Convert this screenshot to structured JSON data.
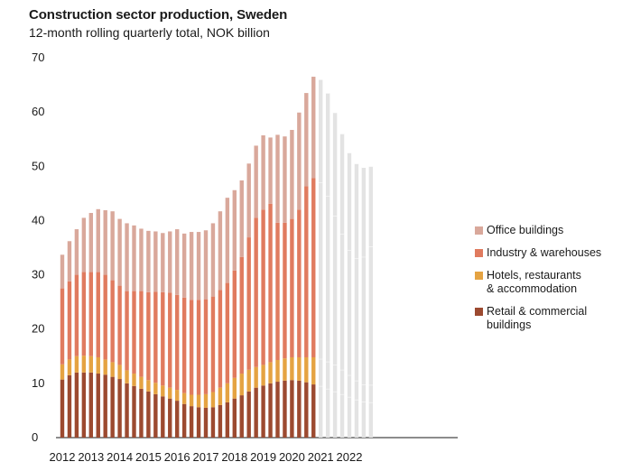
{
  "chart_data": {
    "type": "bar",
    "stacked": true,
    "title": "Construction sector production, Sweden",
    "subtitle": "12-month rolling quarterly total, NOK billion",
    "ylim": [
      0,
      70
    ],
    "yticks": [
      0,
      10,
      20,
      30,
      40,
      50,
      60,
      70
    ],
    "xticks": [
      "2012",
      "2013",
      "2014",
      "2015",
      "2016",
      "2017",
      "2018",
      "2019",
      "2020",
      "2021",
      "2022"
    ],
    "grid": false,
    "legend_position": "right",
    "colors": {
      "office": "#d9a89b",
      "industry": "#e07b5f",
      "hotels": "#e5a342",
      "retail": "#9c4a30",
      "forecast": "#e3e3e3"
    },
    "categories": [
      "2012Q1",
      "2012Q2",
      "2012Q3",
      "2012Q4",
      "2013Q1",
      "2013Q2",
      "2013Q3",
      "2013Q4",
      "2014Q1",
      "2014Q2",
      "2014Q3",
      "2014Q4",
      "2015Q1",
      "2015Q2",
      "2015Q3",
      "2015Q4",
      "2016Q1",
      "2016Q2",
      "2016Q3",
      "2016Q4",
      "2017Q1",
      "2017Q2",
      "2017Q3",
      "2017Q4",
      "2018Q1",
      "2018Q2",
      "2018Q3",
      "2018Q4",
      "2019Q1",
      "2019Q2",
      "2019Q3",
      "2019Q4",
      "2020Q1",
      "2020Q2",
      "2020Q3",
      "2020Q4",
      "2021Q1",
      "2021Q2",
      "2021Q3",
      "2021Q4",
      "2022Q1",
      "2022Q2",
      "2022Q3",
      "2022Q4"
    ],
    "actual_count": 36,
    "series": [
      {
        "name": "Retail & commercial buildings",
        "key": "retail",
        "values": [
          10.7,
          11.5,
          12,
          12,
          12,
          11.8,
          11.6,
          11.2,
          10.8,
          10,
          9.5,
          9,
          8.5,
          8.0,
          7.6,
          7.2,
          6.8,
          6.2,
          5.8,
          5.6,
          5.5,
          5.6,
          6.0,
          6.5,
          7.2,
          7.8,
          8.5,
          9.2,
          9.6,
          10.0,
          10.3,
          10.5,
          10.6,
          10.5,
          10.2,
          9.8,
          9.5,
          9.0,
          8.5,
          8.0,
          7.5,
          7.0,
          6.6,
          6.5
        ]
      },
      {
        "name": "Hotels, restaurants & accommodation",
        "key": "hotels",
        "values": [
          2.8,
          2.9,
          3.0,
          3.1,
          3.0,
          3.0,
          2.8,
          2.7,
          2.6,
          2.4,
          2.3,
          2.2,
          2.1,
          2.1,
          2.0,
          2.0,
          2.0,
          2.0,
          2.1,
          2.3,
          2.5,
          2.8,
          3.2,
          3.5,
          3.8,
          4.0,
          4.0,
          3.8,
          3.8,
          3.9,
          4.0,
          4.1,
          4.2,
          4.3,
          4.6,
          5.0,
          5.0,
          5.0,
          4.9,
          4.5,
          4.0,
          3.5,
          3.2,
          3.2
        ]
      },
      {
        "name": "Industry & warehouses",
        "key": "industry",
        "values": [
          14,
          14.4,
          15,
          15.4,
          15.5,
          15.7,
          15.6,
          15.1,
          14.6,
          14.6,
          15.2,
          15.8,
          16.2,
          16.8,
          17.2,
          17.5,
          17.5,
          17.6,
          17.5,
          17.5,
          17.5,
          17.6,
          18.0,
          18.5,
          19.8,
          21.5,
          24.4,
          27.5,
          28.6,
          29.2,
          25.3,
          25.0,
          25.5,
          27.2,
          31.5,
          33.0,
          32.5,
          30.5,
          27.5,
          25.0,
          23.0,
          22.5,
          23.5,
          25.5
        ]
      },
      {
        "name": "Office buildings",
        "key": "office",
        "values": [
          6.2,
          7.4,
          8.4,
          10.0,
          10.9,
          11.6,
          11.9,
          12.7,
          12.3,
          12.5,
          12.1,
          11.5,
          11.3,
          11.1,
          10.9,
          11.3,
          12.1,
          11.8,
          12.5,
          12.5,
          12.7,
          13.5,
          14.5,
          15.7,
          14.8,
          14.1,
          13.6,
          13.3,
          13.7,
          12.2,
          16.2,
          15.9,
          16.4,
          17.9,
          17.2,
          18.7,
          19.0,
          19.0,
          19.0,
          18.5,
          18.0,
          17.5,
          16.5,
          14.8
        ]
      }
    ]
  },
  "legend": {
    "office": "Office buildings",
    "industry": "Industry & warehouses",
    "hotels": "Hotels, restaurants\n& accommodation",
    "retail": "Retail & commercial\nbuildings"
  }
}
